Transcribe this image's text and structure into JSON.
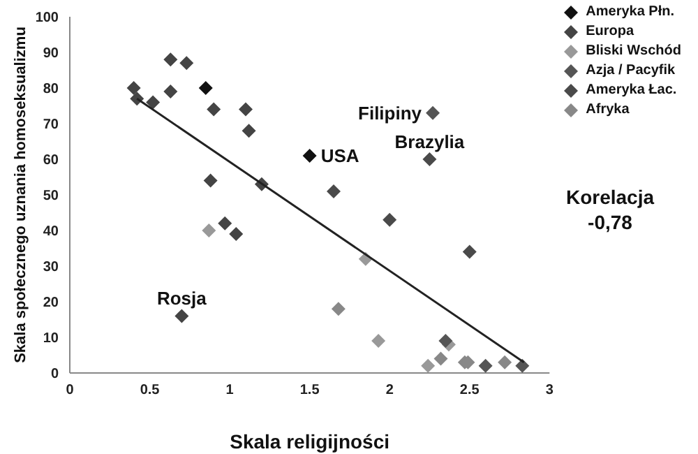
{
  "chart_data": {
    "type": "scatter",
    "xlabel": "Skala religijności",
    "ylabel": "Skala społecznego uznania homoseksualizmu",
    "xlim": [
      0,
      3
    ],
    "xticks": [
      0,
      0.5,
      1,
      1.5,
      2,
      2.5,
      3
    ],
    "ylim": [
      0,
      100
    ],
    "yticks": [
      0,
      10,
      20,
      30,
      40,
      50,
      60,
      70,
      80,
      90,
      100
    ],
    "legend": "top right",
    "marker": "diamond",
    "series": [
      {
        "name": "Ameryka Płn.",
        "color": "#111111",
        "x": [
          0.85,
          1.5
        ],
        "values": [
          80,
          61
        ]
      },
      {
        "name": "Europa",
        "color": "#444444",
        "x": [
          0.4,
          0.42,
          0.52,
          0.63,
          0.63,
          0.73,
          0.9,
          1.1,
          1.12,
          1.2,
          0.88,
          0.97,
          1.04,
          0.7
        ],
        "values": [
          80,
          77,
          76,
          88,
          79,
          87,
          74,
          74,
          68,
          53,
          54,
          42,
          39,
          16
        ]
      },
      {
        "name": "Bliski Wschód",
        "color": "#999999",
        "x": [
          0.87,
          1.85,
          1.93,
          2.24,
          2.37
        ],
        "values": [
          40,
          32,
          9,
          2,
          8
        ]
      },
      {
        "name": "Azja / Pacyfik",
        "color": "#555555",
        "x": [
          2.27,
          2.35,
          2.6,
          2.83
        ],
        "values": [
          73,
          9,
          2,
          2
        ]
      },
      {
        "name": "Ameryka Łac.",
        "color": "#4a4a4a",
        "x": [
          2.25,
          2.0,
          2.5,
          1.65
        ],
        "values": [
          60,
          43,
          34,
          51
        ]
      },
      {
        "name": "Afryka",
        "color": "#888888",
        "x": [
          1.68,
          2.32,
          2.47,
          2.49,
          2.72
        ],
        "values": [
          18,
          4,
          3,
          3,
          3
        ]
      },
      {
        "type": "line",
        "color": "#222222",
        "marker": "none",
        "x": [
          0.42,
          2.84
        ],
        "values": [
          77,
          3
        ]
      }
    ],
    "annotations": [
      {
        "text": "Rosja",
        "x": 0.7,
        "y": 16
      },
      {
        "text": "USA",
        "x": 1.5,
        "y": 61
      },
      {
        "text": "Filipiny",
        "x": 2.27,
        "y": 73
      },
      {
        "text": "Brazylia",
        "x": 2.25,
        "y": 60
      },
      "Korelacja -0,78"
    ]
  }
}
